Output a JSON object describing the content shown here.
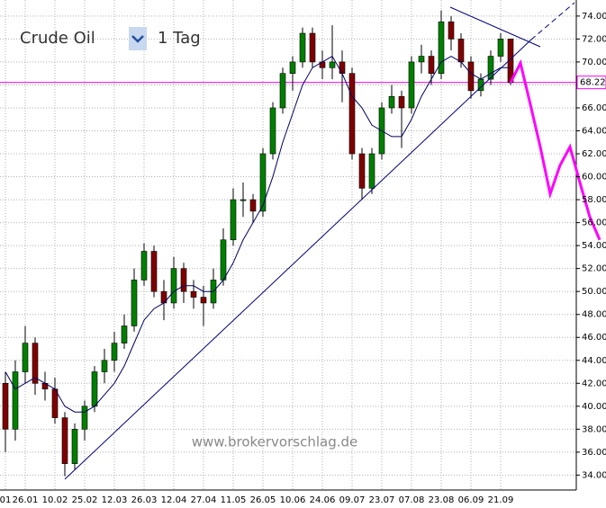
{
  "chart_data": {
    "type": "candlestick",
    "instrument": "Crude Oil",
    "period": "1 Tag",
    "watermark": "www.brokervorschlag.de",
    "categories": [
      "01",
      null,
      "26.01",
      null,
      null,
      "10.02",
      null,
      null,
      "25.02",
      null,
      null,
      "12.03",
      null,
      null,
      "26.03",
      null,
      null,
      "12.04",
      null,
      null,
      "27.04",
      null,
      null,
      "11.05",
      null,
      null,
      "26.05",
      null,
      null,
      "10.06",
      null,
      null,
      "24.06",
      null,
      null,
      "09.07",
      null,
      null,
      "23.07",
      null,
      null,
      "07.08",
      null,
      null,
      "23.08",
      null,
      null,
      "06.09",
      null,
      null,
      "21.09",
      null,
      null,
      null,
      null,
      null,
      null,
      null,
      null,
      null,
      null
    ],
    "open": [
      42,
      38,
      43,
      45.5,
      42,
      41.5,
      39,
      35,
      38,
      40,
      43,
      44,
      45.5,
      47,
      51,
      53.5,
      50,
      49,
      52,
      50,
      49.5,
      49,
      51,
      54.5,
      58,
      58,
      57,
      62,
      66,
      69,
      70,
      72.5,
      70,
      69.5,
      70,
      69,
      62,
      59,
      62,
      66,
      67,
      66,
      70,
      70.5,
      69,
      73.5,
      72,
      70,
      67.5,
      68.5,
      70.5,
      72,
      null,
      null,
      null,
      null,
      null,
      null,
      null,
      null,
      null
    ],
    "high": [
      43,
      44,
      47,
      46,
      43,
      42.5,
      39.5,
      38.5,
      40.5,
      43.5,
      45,
      46.5,
      48,
      52,
      54.2,
      54,
      51,
      53,
      52.5,
      51,
      50.5,
      52,
      55.5,
      59,
      59.5,
      58.5,
      62.5,
      66.5,
      69.5,
      70.5,
      73,
      73,
      71,
      73.2,
      71,
      69.5,
      62.5,
      62.5,
      66.5,
      68,
      67.5,
      70.5,
      71.5,
      71,
      74.5,
      74,
      72.5,
      70.5,
      69,
      71,
      72.5,
      72,
      null,
      null,
      null,
      null,
      null,
      null,
      null,
      null,
      null
    ],
    "low": [
      36,
      37,
      42,
      41,
      40.5,
      38.5,
      33.9,
      34.5,
      37,
      39.5,
      42,
      43,
      45,
      46.5,
      50.5,
      49.5,
      47.5,
      48.5,
      49,
      48.5,
      47,
      48.5,
      50.5,
      54,
      56.5,
      56,
      56.5,
      61.5,
      65.5,
      67.5,
      69.5,
      69.5,
      68.5,
      68.5,
      66.5,
      61.5,
      58,
      58.5,
      61.5,
      65.5,
      62.5,
      65.5,
      69,
      68,
      68.5,
      71,
      69.5,
      66.8,
      67,
      68,
      70,
      68,
      null,
      null,
      null,
      null,
      null,
      null,
      null,
      null,
      null
    ],
    "close": [
      38,
      43,
      45.5,
      42,
      41.5,
      39,
      35,
      38,
      40,
      43,
      44,
      45.5,
      47,
      51,
      53.5,
      50,
      49,
      52,
      50,
      49.5,
      49,
      51,
      54.5,
      58,
      58,
      57,
      62,
      66,
      69,
      70,
      72.5,
      70,
      69.5,
      70,
      69,
      62,
      59,
      62,
      66,
      67,
      66,
      70,
      70.5,
      69,
      73.5,
      72,
      70,
      67.5,
      68.5,
      70.5,
      72,
      68.2,
      null,
      null,
      null,
      null,
      null,
      null,
      null,
      null,
      null
    ],
    "up_color": "#008000",
    "down_color": "#800000",
    "moving_average": {
      "color": "#000066",
      "values": [
        43,
        41.5,
        42,
        42.5,
        42,
        41.5,
        40,
        39.5,
        39.5,
        40,
        41,
        42,
        43.5,
        45.5,
        47.5,
        48.5,
        49,
        50,
        50.5,
        50.5,
        50,
        50,
        51,
        52.5,
        54.5,
        56,
        57.5,
        60,
        63,
        65.5,
        68,
        69.5,
        70,
        70.5,
        69,
        67,
        66,
        64.5,
        64,
        63.5,
        63.5,
        65,
        67,
        68.5,
        70,
        70.5,
        70,
        69,
        68.5,
        69,
        69.5,
        69.5,
        null,
        null,
        null,
        null,
        null,
        null,
        null,
        null,
        null
      ]
    },
    "forecast": {
      "color": "#ff00ff",
      "values": [
        null,
        null,
        null,
        null,
        null,
        null,
        null,
        null,
        null,
        null,
        null,
        null,
        null,
        null,
        null,
        null,
        null,
        null,
        null,
        null,
        null,
        null,
        null,
        null,
        null,
        null,
        null,
        null,
        null,
        null,
        null,
        null,
        null,
        null,
        null,
        null,
        null,
        null,
        null,
        null,
        null,
        null,
        null,
        null,
        null,
        null,
        null,
        null,
        null,
        null,
        null,
        68.2,
        69.9,
        66.3,
        62.6,
        58.5,
        61.0,
        62.6,
        59.5,
        56.5,
        54.5
      ]
    },
    "level": {
      "value": 68.22,
      "label": "68.22",
      "color": "#ff00ff"
    },
    "ylim": [
      32.7,
      75.4
    ],
    "yticks": [
      {
        "value": 34,
        "label": "34.00"
      },
      {
        "value": 36,
        "label": "36.00"
      },
      {
        "value": 38,
        "label": "38.00"
      },
      {
        "value": 40,
        "label": "40.00"
      },
      {
        "value": 42,
        "label": "42.00"
      },
      {
        "value": 44,
        "label": "44.00"
      },
      {
        "value": 46,
        "label": "46.00"
      },
      {
        "value": 48,
        "label": "48.00"
      },
      {
        "value": 50,
        "label": "50.00"
      },
      {
        "value": 52,
        "label": "52.00"
      },
      {
        "value": 54,
        "label": "54.00"
      },
      {
        "value": 56,
        "label": "56.00"
      },
      {
        "value": 58,
        "label": "58.00"
      },
      {
        "value": 60,
        "label": "60.00"
      },
      {
        "value": 62,
        "label": "62.00"
      },
      {
        "value": 64,
        "label": "64.00"
      },
      {
        "value": 66,
        "label": "66.00"
      },
      {
        "value": 68,
        "label": "68.00"
      },
      {
        "value": 70,
        "label": "70.00"
      },
      {
        "value": 72,
        "label": "72.00"
      },
      {
        "value": 74,
        "label": "74.00"
      }
    ],
    "grid": true
  }
}
